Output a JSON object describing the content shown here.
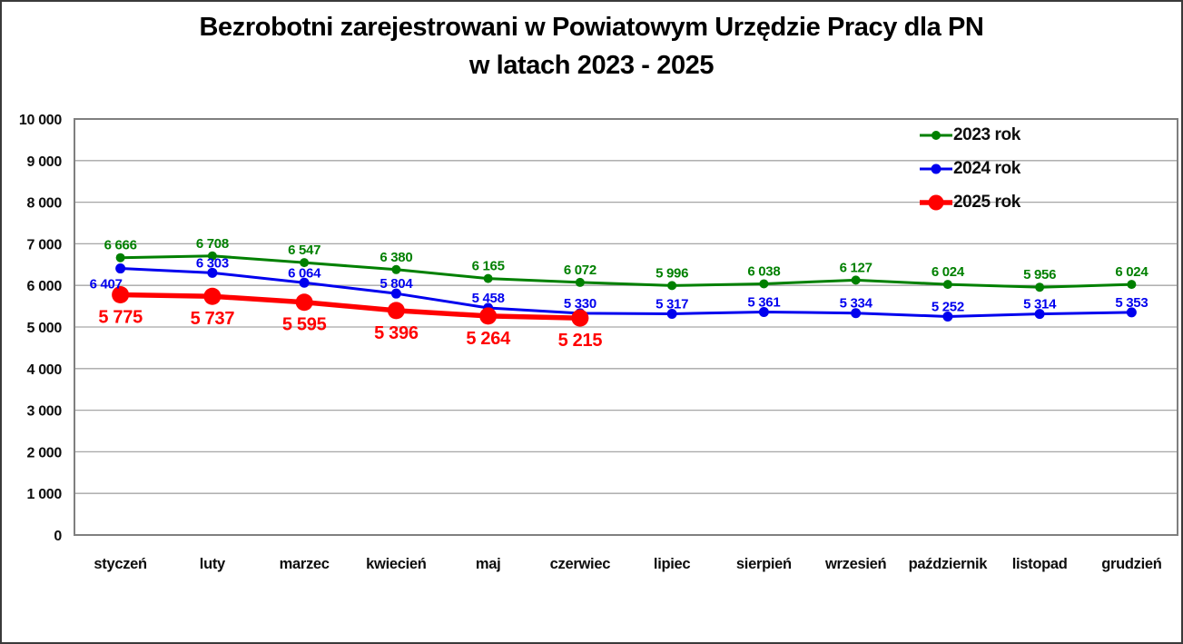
{
  "chart_data": {
    "type": "line",
    "title": "Bezrobotni zarejestrowani w Powiatowym Urzędzie Pracy dla PN",
    "subtitle": "w latach 2023 - 2025",
    "categories": [
      "styczeń",
      "luty",
      "marzec",
      "kwiecień",
      "maj",
      "czerwiec",
      "lipiec",
      "sierpień",
      "wrzesień",
      "październik",
      "listopad",
      "grudzień"
    ],
    "series": [
      {
        "name": "2023 rok",
        "color": "#008000",
        "values": [
          6666,
          6708,
          6547,
          6380,
          6165,
          6072,
          5996,
          6038,
          6127,
          6024,
          5956,
          6024
        ],
        "line_width": 3,
        "marker_radius": 5,
        "label_size": 15,
        "label_dy": -9
      },
      {
        "name": "2024 rok",
        "color": "#0000ee",
        "values": [
          6407,
          6303,
          6064,
          5804,
          5458,
          5330,
          5317,
          5361,
          5334,
          5252,
          5314,
          5353
        ],
        "line_width": 3,
        "marker_radius": 5.5,
        "label_size": 15,
        "label_dy": -6,
        "label_exceptions": {
          "0": {
            "dx": -16,
            "dy": 22
          }
        }
      },
      {
        "name": "2025 rok",
        "color": "#ff0000",
        "values": [
          5775,
          5737,
          5595,
          5396,
          5264,
          5215
        ],
        "line_width": 5.5,
        "marker_radius": 9.5,
        "label_size": 20,
        "label_dy": 31
      }
    ],
    "ylim": [
      0,
      10000
    ],
    "ytick_step": 1000,
    "ytick_labels": [
      "0",
      "1 000",
      "2 000",
      "3 000",
      "4 000",
      "5 000",
      "6 000",
      "7 000",
      "8 000",
      "9 000",
      "10 000"
    ],
    "grid": "horizontal",
    "gridline_color": "#a6a6a6",
    "plot_border_color": "#7f7f7f",
    "axis_label_color": "#0d0d0d",
    "legend_position": "top-right",
    "data_labels": true,
    "number_format": "space-thousands"
  }
}
